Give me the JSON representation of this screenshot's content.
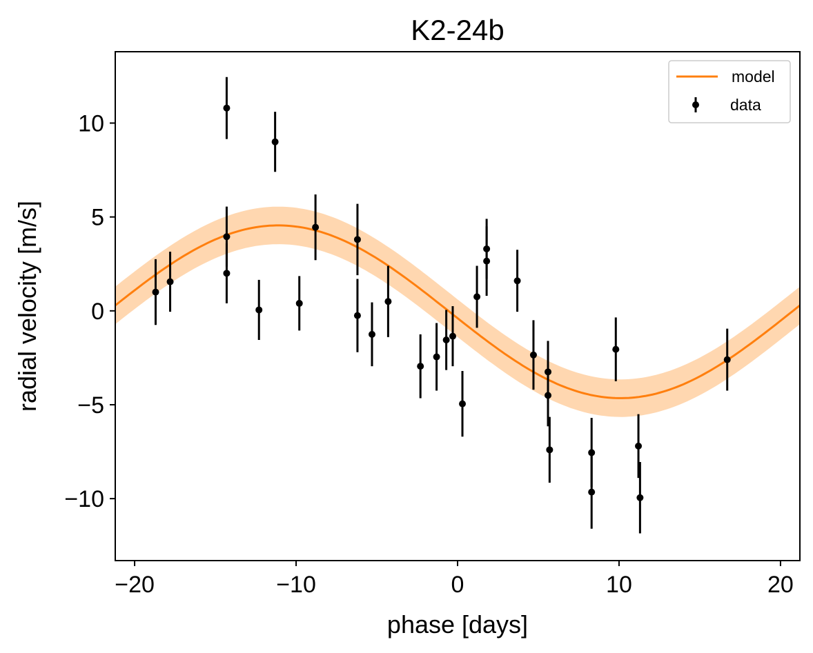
{
  "chart_data": {
    "type": "scatter",
    "title": "K2-24b",
    "xlabel": "phase [days]",
    "ylabel": "radial velocity [m/s]",
    "xlim": [
      -21.2,
      21.2
    ],
    "ylim": [
      -13.3,
      13.8
    ],
    "xticks": [
      -20,
      -10,
      0,
      10,
      20
    ],
    "xtick_labels": [
      "−20",
      "−10",
      "0",
      "10",
      "20"
    ],
    "yticks": [
      -10,
      -5,
      0,
      5,
      10
    ],
    "ytick_labels": [
      "−10",
      "−5",
      "0",
      "5",
      "10"
    ],
    "grid": false,
    "legend": {
      "position": "top-right",
      "entries": [
        {
          "label": "model",
          "style": "line",
          "color": "#ff7f0e"
        },
        {
          "label": "data",
          "style": "errorbar",
          "color": "#000000"
        }
      ]
    },
    "model": {
      "name": "model",
      "color": "#ff7f0e",
      "band_color": "#ffd7b0",
      "description": "sinusoid",
      "amplitude": 4.6,
      "period": 42.4,
      "phase_offset": -0.5,
      "offset": -0.05,
      "band_halfwidth": 1.0,
      "x_range": [
        -21.2,
        21.2
      ]
    },
    "series": [
      {
        "name": "data",
        "color": "#000000",
        "points": [
          {
            "x": -18.7,
            "y": 1.0,
            "err": 1.75
          },
          {
            "x": -17.8,
            "y": 1.55,
            "err": 1.6
          },
          {
            "x": -14.3,
            "y": 10.8,
            "err": 1.65
          },
          {
            "x": -14.3,
            "y": 3.95,
            "err": 1.6
          },
          {
            "x": -14.3,
            "y": 2.0,
            "err": 1.6
          },
          {
            "x": -12.3,
            "y": 0.05,
            "err": 1.6
          },
          {
            "x": -11.3,
            "y": 9.0,
            "err": 1.6
          },
          {
            "x": -9.8,
            "y": 0.4,
            "err": 1.45
          },
          {
            "x": -8.8,
            "y": 4.45,
            "err": 1.75
          },
          {
            "x": -6.2,
            "y": 3.8,
            "err": 1.9
          },
          {
            "x": -6.2,
            "y": -0.25,
            "err": 1.95
          },
          {
            "x": -5.3,
            "y": -1.25,
            "err": 1.7
          },
          {
            "x": -4.3,
            "y": 0.5,
            "err": 1.9
          },
          {
            "x": -2.3,
            "y": -2.95,
            "err": 1.7
          },
          {
            "x": -1.3,
            "y": -2.45,
            "err": 1.8
          },
          {
            "x": -0.7,
            "y": -1.55,
            "err": 1.6
          },
          {
            "x": -0.3,
            "y": -1.35,
            "err": 1.6
          },
          {
            "x": 0.3,
            "y": -4.95,
            "err": 1.75
          },
          {
            "x": 1.2,
            "y": 0.75,
            "err": 1.65
          },
          {
            "x": 1.8,
            "y": 2.65,
            "err": 1.85
          },
          {
            "x": 1.8,
            "y": 3.3,
            "err": 1.6
          },
          {
            "x": 3.7,
            "y": 1.6,
            "err": 1.65
          },
          {
            "x": 4.7,
            "y": -2.35,
            "err": 1.85
          },
          {
            "x": 5.6,
            "y": -3.25,
            "err": 1.65
          },
          {
            "x": 5.6,
            "y": -4.5,
            "err": 1.65
          },
          {
            "x": 5.7,
            "y": -7.4,
            "err": 1.75
          },
          {
            "x": 8.3,
            "y": -7.55,
            "err": 1.85
          },
          {
            "x": 8.3,
            "y": -9.65,
            "err": 1.95
          },
          {
            "x": 9.8,
            "y": -2.05,
            "err": 1.7
          },
          {
            "x": 11.2,
            "y": -7.2,
            "err": 1.7
          },
          {
            "x": 11.3,
            "y": -9.95,
            "err": 1.9
          },
          {
            "x": 16.7,
            "y": -2.6,
            "err": 1.65
          }
        ]
      }
    ]
  }
}
